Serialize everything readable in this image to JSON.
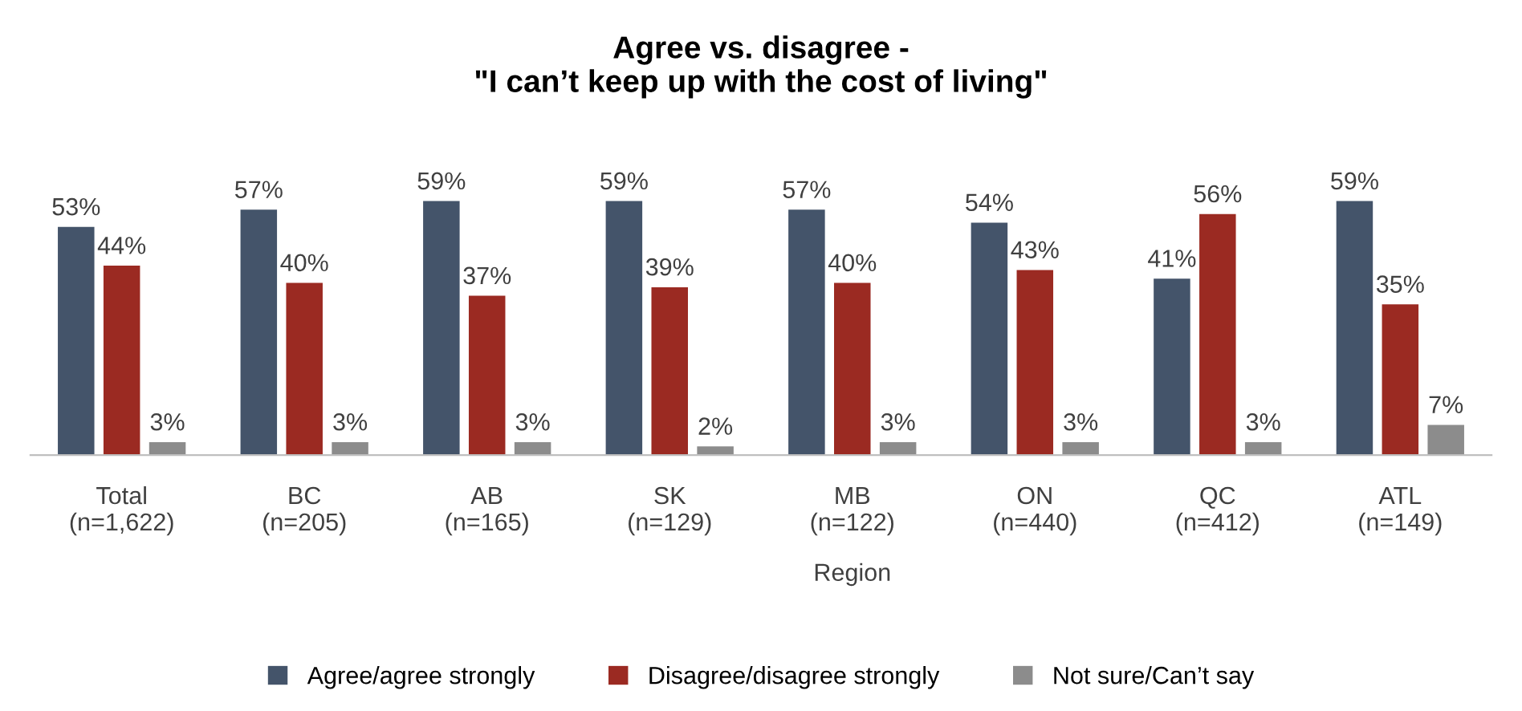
{
  "chart_data": {
    "type": "bar",
    "title": "Agree vs. disagree -\n\"I can’t keep up with the cost of living\"",
    "categories": [
      "Total\n(n=1,622)",
      "BC\n(n=205)",
      "AB\n(n=165)",
      "SK\n(n=129)",
      "MB\n(n=122)",
      "ON\n(n=440)",
      "QC\n(n=412)",
      "ATL\n(n=149)"
    ],
    "xlabel": "Region",
    "series": [
      {
        "name": "Agree/agree strongly",
        "color": "#44546a",
        "values": [
          53,
          57,
          59,
          59,
          57,
          54,
          41,
          59
        ],
        "value_labels": [
          "53%",
          "57%",
          "59%",
          "59%",
          "57%",
          "54%",
          "41%",
          "59%"
        ]
      },
      {
        "name": "Disagree/disagree strongly",
        "color": "#9b2a22",
        "values": [
          44,
          40,
          37,
          39,
          40,
          43,
          56,
          35
        ],
        "value_labels": [
          "44%",
          "40%",
          "37%",
          "39%",
          "40%",
          "43%",
          "56%",
          "35%"
        ]
      },
      {
        "name": "Not sure/Can’t say",
        "color": "#8c8c8c",
        "values": [
          3,
          3,
          3,
          2,
          3,
          3,
          3,
          7
        ],
        "value_labels": [
          "3%",
          "3%",
          "3%",
          "2%",
          "3%",
          "3%",
          "3%",
          "7%"
        ]
      }
    ],
    "legend": "bottom"
  }
}
